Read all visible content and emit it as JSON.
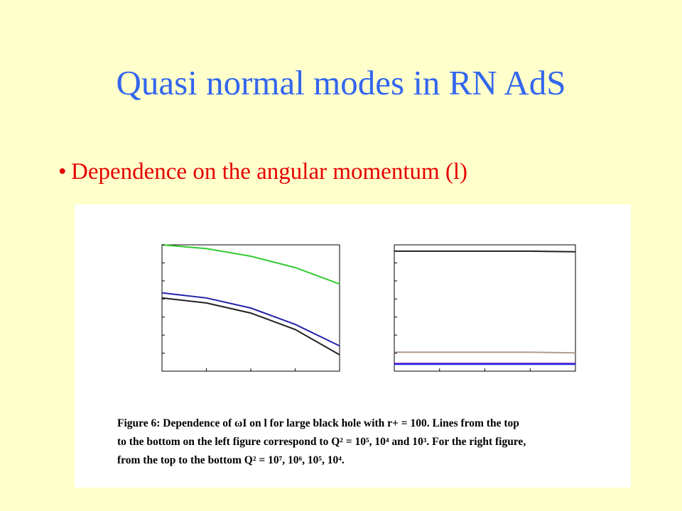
{
  "slide": {
    "title": "Quasi normal modes in RN AdS",
    "bullet": "Dependence on the angular momentum (l)"
  },
  "figure": {
    "caption_lines": [
      "Figure 6:   Dependence of ωI on l for large black hole with r+ = 100.  Lines from the top",
      "to the bottom on the left figure correspond to Q² = 10⁵, 10⁴ and 10³.  For the right figure,",
      "from the top to the bottom Q² = 10⁷, 10⁶, 10⁵, 10⁴."
    ]
  },
  "chart_data": [
    {
      "type": "line",
      "x": [
        0,
        1,
        2,
        3,
        4
      ],
      "series": [
        {
          "values": [
            1.0,
            0.97,
            0.91,
            0.82,
            0.69
          ],
          "color": "#33cc33"
        },
        {
          "values": [
            0.62,
            0.58,
            0.5,
            0.37,
            0.2
          ],
          "color": "#2222aa"
        },
        {
          "values": [
            0.58,
            0.54,
            0.46,
            0.33,
            0.13
          ],
          "color": "#222222"
        }
      ],
      "xlim": [
        0,
        4
      ],
      "ylim": [
        0,
        1
      ]
    },
    {
      "type": "line",
      "x": [
        0,
        1,
        2,
        3,
        4
      ],
      "series": [
        {
          "values": [
            0.95,
            0.95,
            0.95,
            0.95,
            0.945
          ],
          "color": "#222222"
        },
        {
          "values": [
            0.15,
            0.15,
            0.15,
            0.15,
            0.145
          ],
          "color": "#b09a90"
        },
        {
          "values": [
            0.06,
            0.06,
            0.06,
            0.06,
            0.06
          ],
          "color": "#6600cc"
        },
        {
          "values": [
            0.055,
            0.055,
            0.055,
            0.055,
            0.055
          ],
          "color": "#2233dd"
        }
      ],
      "xlim": [
        0,
        4
      ],
      "ylim": [
        0,
        1
      ]
    }
  ]
}
